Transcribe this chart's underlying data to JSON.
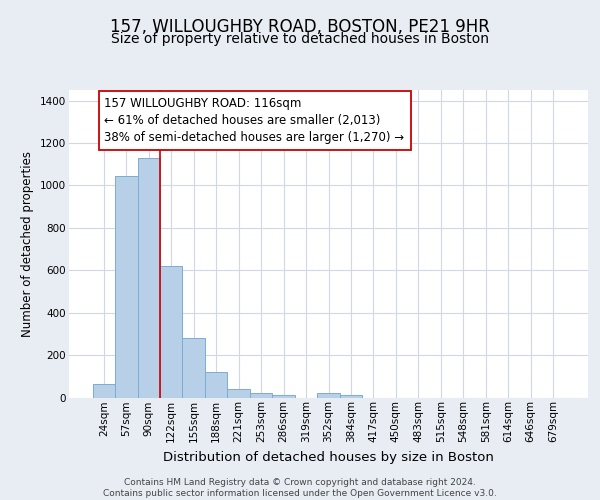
{
  "title": "157, WILLOUGHBY ROAD, BOSTON, PE21 9HR",
  "subtitle": "Size of property relative to detached houses in Boston",
  "xlabel": "Distribution of detached houses by size in Boston",
  "ylabel": "Number of detached properties",
  "categories": [
    "24sqm",
    "57sqm",
    "90sqm",
    "122sqm",
    "155sqm",
    "188sqm",
    "221sqm",
    "253sqm",
    "286sqm",
    "319sqm",
    "352sqm",
    "384sqm",
    "417sqm",
    "450sqm",
    "483sqm",
    "515sqm",
    "548sqm",
    "581sqm",
    "614sqm",
    "646sqm",
    "679sqm"
  ],
  "values": [
    65,
    1045,
    1130,
    620,
    280,
    120,
    42,
    22,
    14,
    0,
    22,
    10,
    0,
    0,
    0,
    0,
    0,
    0,
    0,
    0,
    0
  ],
  "bar_color_active": "#b8cfe8",
  "bar_color_inactive": "#dce8f5",
  "bar_edgecolor": "#7aadd4",
  "bar_linewidth": 0.7,
  "active_threshold_idx": 11,
  "vline_x": 2.5,
  "vline_color": "#cc0000",
  "vline_linewidth": 1.2,
  "annotation_lines": [
    "157 WILLOUGHBY ROAD: 116sqm",
    "← 61% of detached houses are smaller (2,013)",
    "38% of semi-detached houses are larger (1,270) →"
  ],
  "box_facecolor": "white",
  "box_edgecolor": "#cc0000",
  "ylim": [
    0,
    1450
  ],
  "yticks": [
    0,
    200,
    400,
    600,
    800,
    1000,
    1200,
    1400
  ],
  "background_color": "#e8edf4",
  "plot_background": "white",
  "grid_color": "#d0d8e8",
  "title_fontsize": 12,
  "subtitle_fontsize": 10,
  "xlabel_fontsize": 9.5,
  "ylabel_fontsize": 8.5,
  "tick_fontsize": 7.5,
  "annotation_fontsize": 8.5,
  "footer_text": "Contains HM Land Registry data © Crown copyright and database right 2024.\nContains public sector information licensed under the Open Government Licence v3.0."
}
